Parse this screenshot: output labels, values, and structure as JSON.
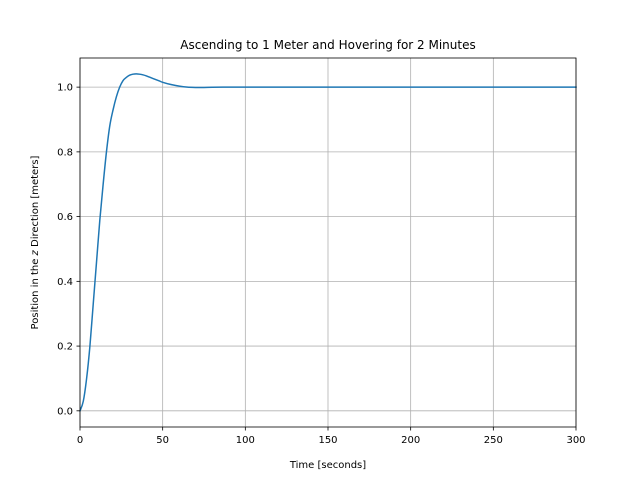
{
  "chart_data": {
    "type": "line",
    "title": "Ascending to 1 Meter and Hovering for 2 Minutes",
    "xlabel": "Time [seconds]",
    "ylabel_prefix": "Position in the ",
    "ylabel_var": "z",
    "ylabel_suffix": " Direction [meters]",
    "xlim": [
      0,
      300
    ],
    "ylim": [
      -0.05,
      1.09
    ],
    "xticks": [
      0,
      50,
      100,
      150,
      200,
      250,
      300
    ],
    "xtick_labels": [
      "0",
      "50",
      "100",
      "150",
      "200",
      "250",
      "300"
    ],
    "yticks": [
      0.0,
      0.2,
      0.4,
      0.6,
      0.8,
      1.0
    ],
    "ytick_labels": [
      "0.0",
      "0.2",
      "0.4",
      "0.6",
      "0.8",
      "1.0"
    ],
    "grid": true,
    "series": [
      {
        "color": "#1f77b4",
        "x": [
          0,
          2,
          4,
          6,
          8,
          10,
          12,
          14,
          16,
          18,
          20,
          22,
          24,
          26,
          28,
          30,
          32,
          34,
          36,
          38,
          40,
          42,
          44,
          46,
          48,
          50,
          55,
          60,
          65,
          70,
          75,
          80,
          90,
          100,
          120,
          150,
          200,
          250,
          300
        ],
        "y": [
          0.0,
          0.03,
          0.1,
          0.2,
          0.33,
          0.46,
          0.59,
          0.7,
          0.8,
          0.88,
          0.93,
          0.97,
          1.0,
          1.02,
          1.03,
          1.037,
          1.04,
          1.041,
          1.04,
          1.038,
          1.035,
          1.031,
          1.027,
          1.023,
          1.019,
          1.015,
          1.008,
          1.003,
          1.0,
          0.999,
          0.999,
          0.9995,
          1.0,
          1.0,
          1.0,
          1.0,
          1.0,
          1.0,
          1.0
        ]
      }
    ]
  }
}
